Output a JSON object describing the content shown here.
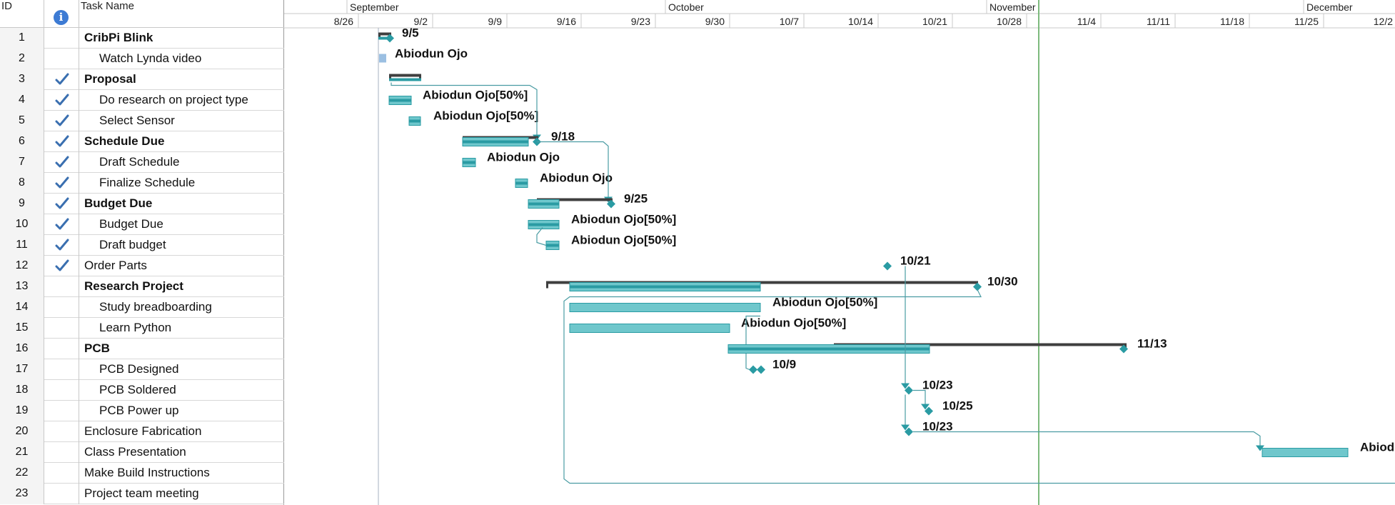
{
  "headers": {
    "id": "ID",
    "task_name": "Task Name",
    "indicators": "i"
  },
  "timescale": {
    "months": [
      "September",
      "October",
      "November",
      "December"
    ],
    "weeks": [
      "8/26",
      "9/2",
      "9/9",
      "9/16",
      "9/23",
      "9/30",
      "10/7",
      "10/14",
      "10/21",
      "10/28",
      "11/4",
      "11/11",
      "11/18",
      "11/25",
      "12/2"
    ]
  },
  "tasks": [
    {
      "id": "1",
      "name": "CribPi Blink",
      "summary": true,
      "done": false,
      "label": "9/5"
    },
    {
      "id": "2",
      "name": "Watch Lynda video",
      "summary": false,
      "done": false,
      "label": "Abiodun Ojo"
    },
    {
      "id": "3",
      "name": "Proposal",
      "summary": true,
      "done": true,
      "label": ""
    },
    {
      "id": "4",
      "name": "Do research on project type",
      "summary": false,
      "done": true,
      "label": "Abiodun Ojo[50%]"
    },
    {
      "id": "5",
      "name": "Select Sensor",
      "summary": false,
      "done": true,
      "label": "Abiodun Ojo[50%]"
    },
    {
      "id": "6",
      "name": "Schedule Due",
      "summary": true,
      "done": true,
      "label": "9/18"
    },
    {
      "id": "7",
      "name": "Draft Schedule",
      "summary": false,
      "done": true,
      "label": "Abiodun Ojo"
    },
    {
      "id": "8",
      "name": "Finalize Schedule",
      "summary": false,
      "done": true,
      "label": "Abiodun Ojo"
    },
    {
      "id": "9",
      "name": "Budget Due",
      "summary": true,
      "done": true,
      "label": "9/25"
    },
    {
      "id": "10",
      "name": "Budget Due",
      "summary": false,
      "done": true,
      "label": "Abiodun Ojo[50%]"
    },
    {
      "id": "11",
      "name": "Draft budget",
      "summary": false,
      "done": true,
      "label": "Abiodun Ojo[50%]"
    },
    {
      "id": "12",
      "name": "Order Parts",
      "summary": false,
      "done": true,
      "label": "10/21"
    },
    {
      "id": "13",
      "name": "Research Project",
      "summary": true,
      "done": false,
      "label": "10/30"
    },
    {
      "id": "14",
      "name": "Study breadboarding",
      "summary": false,
      "done": false,
      "label": "Abiodun Ojo[50%]"
    },
    {
      "id": "15",
      "name": "Learn Python",
      "summary": false,
      "done": false,
      "label": "Abiodun Ojo[50%]"
    },
    {
      "id": "16",
      "name": "PCB",
      "summary": true,
      "done": false,
      "label": "11/13"
    },
    {
      "id": "17",
      "name": "PCB Designed",
      "summary": false,
      "done": false,
      "label": "10/9"
    },
    {
      "id": "18",
      "name": "PCB Soldered",
      "summary": false,
      "done": false,
      "label": "10/23"
    },
    {
      "id": "19",
      "name": "PCB Power up",
      "summary": false,
      "done": false,
      "label": "10/25"
    },
    {
      "id": "20",
      "name": "Enclosure Fabrication",
      "summary": false,
      "done": false,
      "label": "10/23"
    },
    {
      "id": "21",
      "name": "Class Presentation",
      "summary": false,
      "done": false,
      "label": "Abiod"
    },
    {
      "id": "22",
      "name": "Make Build Instructions",
      "summary": false,
      "done": false,
      "label": ""
    },
    {
      "id": "23",
      "name": "Project team meeting",
      "summary": false,
      "done": false,
      "label": ""
    }
  ],
  "colors": {
    "task_bar": "#6fc7cc",
    "task_bar_edge": "#2a9ba3",
    "progress": "#2a9ba3",
    "summary": "#3f3f3f",
    "milestone": "#2a9ba3",
    "link": "#4a9ca3",
    "today_line": "#7dba7d",
    "check": "#3a6fb0"
  }
}
